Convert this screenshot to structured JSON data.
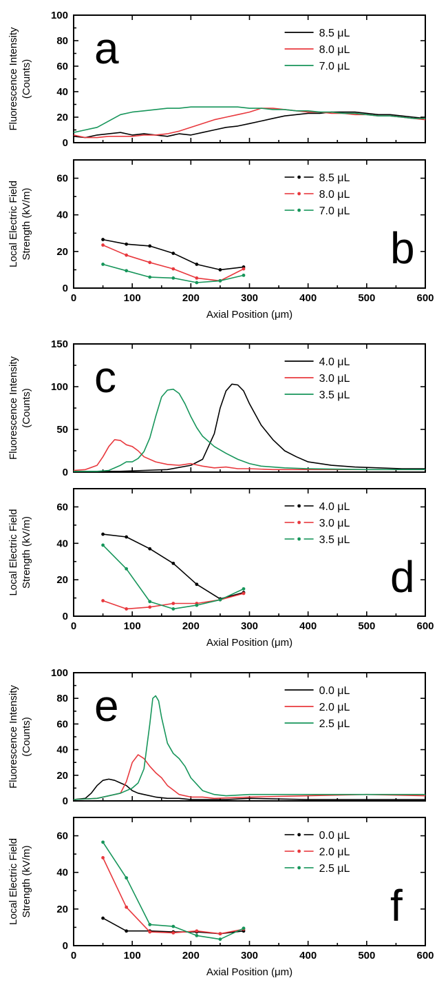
{
  "colors": {
    "black": "#000000",
    "red": "#e8383d",
    "green": "#16955a"
  },
  "chart_data": [
    {
      "type": "line",
      "panel_letter": "a",
      "ylabel": [
        "Fluorescence Intensity",
        "(Counts)"
      ],
      "ylim": [
        0,
        100
      ],
      "yticks": [
        0,
        20,
        40,
        60,
        80,
        100
      ],
      "xlim": [
        0,
        600
      ],
      "xticks": [],
      "series": [
        {
          "name": "8.5 μL",
          "color": "black",
          "markers": false,
          "x": [
            0,
            20,
            40,
            60,
            80,
            100,
            120,
            140,
            160,
            180,
            200,
            220,
            240,
            260,
            280,
            300,
            320,
            340,
            360,
            380,
            400,
            420,
            440,
            460,
            480,
            500,
            520,
            540,
            560,
            580,
            600
          ],
          "y": [
            5,
            4,
            6,
            7,
            8,
            6,
            7,
            6,
            5,
            7,
            6,
            8,
            10,
            12,
            13,
            15,
            17,
            19,
            21,
            22,
            23,
            23,
            24,
            24,
            24,
            23,
            22,
            22,
            21,
            20,
            19
          ]
        },
        {
          "name": "8.0 μL",
          "color": "red",
          "markers": false,
          "x": [
            0,
            20,
            40,
            60,
            80,
            100,
            120,
            140,
            160,
            180,
            200,
            220,
            240,
            260,
            280,
            300,
            320,
            340,
            360,
            380,
            400,
            420,
            440,
            460,
            480,
            500,
            520,
            540,
            560,
            580,
            600
          ],
          "y": [
            6,
            4,
            4,
            5,
            5,
            5,
            6,
            6,
            7,
            9,
            12,
            15,
            18,
            20,
            22,
            24,
            27,
            27,
            26,
            25,
            24,
            24,
            23,
            23,
            22,
            22,
            21,
            21,
            20,
            19,
            18
          ]
        },
        {
          "name": "7.0 μL",
          "color": "green",
          "markers": false,
          "x": [
            0,
            20,
            40,
            60,
            80,
            100,
            120,
            140,
            160,
            180,
            200,
            220,
            240,
            260,
            280,
            300,
            320,
            340,
            360,
            380,
            400,
            420,
            440,
            460,
            480,
            500,
            520,
            540,
            560,
            580,
            600
          ],
          "y": [
            8,
            10,
            12,
            17,
            22,
            24,
            25,
            26,
            27,
            27,
            28,
            28,
            28,
            28,
            28,
            27,
            27,
            26,
            26,
            25,
            25,
            24,
            24,
            23,
            23,
            22,
            21,
            21,
            20,
            19,
            19
          ]
        }
      ]
    },
    {
      "type": "line",
      "panel_letter": "b",
      "ylabel": [
        "Local Electric Field",
        "Strength (kV/m)"
      ],
      "ylim": [
        0,
        70
      ],
      "yticks": [
        0,
        20,
        40,
        60
      ],
      "xlim": [
        0,
        600
      ],
      "xticks": [
        0,
        100,
        200,
        300,
        400,
        500,
        600
      ],
      "xlabel": "Axial Position (μm)",
      "series": [
        {
          "name": "8.5 μL",
          "color": "black",
          "markers": true,
          "x": [
            50,
            90,
            130,
            170,
            210,
            250,
            290
          ],
          "y": [
            26.5,
            24,
            23,
            19,
            13,
            10,
            11.5
          ]
        },
        {
          "name": "8.0 μL",
          "color": "red",
          "markers": true,
          "x": [
            50,
            90,
            130,
            170,
            210,
            250,
            290
          ],
          "y": [
            23.5,
            18,
            14,
            10.5,
            5.5,
            4,
            10.5
          ]
        },
        {
          "name": "7.0 μL",
          "color": "green",
          "markers": true,
          "x": [
            50,
            90,
            130,
            170,
            210,
            250,
            290
          ],
          "y": [
            13,
            9.5,
            6,
            5.5,
            3,
            4,
            7
          ]
        }
      ]
    },
    {
      "type": "line",
      "panel_letter": "c",
      "ylabel": [
        "Fluorescence Intensity",
        "(Counts)"
      ],
      "ylim": [
        0,
        150
      ],
      "yticks": [
        0,
        50,
        100,
        150
      ],
      "xlim": [
        0,
        600
      ],
      "xticks": [],
      "series": [
        {
          "name": "4.0 μL",
          "color": "black",
          "markers": false,
          "x": [
            0,
            40,
            80,
            120,
            160,
            200,
            220,
            240,
            250,
            260,
            270,
            280,
            290,
            300,
            320,
            340,
            360,
            380,
            400,
            440,
            480,
            520,
            560,
            600
          ],
          "y": [
            1,
            1,
            1,
            2,
            3,
            8,
            15,
            45,
            75,
            95,
            103,
            102,
            95,
            80,
            55,
            38,
            25,
            18,
            12,
            8,
            6,
            5,
            4,
            4
          ]
        },
        {
          "name": "3.0 μL",
          "color": "red",
          "markers": false,
          "x": [
            0,
            20,
            40,
            50,
            60,
            70,
            80,
            90,
            100,
            110,
            120,
            140,
            160,
            180,
            200,
            220,
            240,
            260,
            280,
            300,
            340,
            400,
            500,
            600
          ],
          "y": [
            2,
            3,
            8,
            18,
            30,
            38,
            37,
            32,
            30,
            25,
            18,
            12,
            9,
            8,
            10,
            7,
            5,
            6,
            4,
            4,
            3,
            3,
            3,
            3
          ]
        },
        {
          "name": "3.5 μL",
          "color": "green",
          "markers": false,
          "x": [
            0,
            40,
            60,
            80,
            90,
            100,
            110,
            120,
            130,
            140,
            150,
            160,
            170,
            180,
            190,
            200,
            210,
            220,
            240,
            260,
            280,
            300,
            320,
            360,
            400,
            500,
            600
          ],
          "y": [
            1,
            1,
            2,
            8,
            12,
            12,
            16,
            24,
            40,
            65,
            88,
            96,
            97,
            92,
            80,
            65,
            52,
            42,
            30,
            22,
            15,
            10,
            7,
            5,
            4,
            3,
            3
          ]
        }
      ]
    },
    {
      "type": "line",
      "panel_letter": "d",
      "ylabel": [
        "Local Electric Field",
        "Strength (kV/m)"
      ],
      "ylim": [
        0,
        70
      ],
      "yticks": [
        0,
        20,
        40,
        60
      ],
      "xlim": [
        0,
        600
      ],
      "xticks": [
        0,
        100,
        200,
        300,
        400,
        500,
        600
      ],
      "xlabel": "Axial Position (μm)",
      "series": [
        {
          "name": "4.0 μL",
          "color": "black",
          "markers": true,
          "x": [
            50,
            90,
            130,
            170,
            210,
            250,
            290
          ],
          "y": [
            45,
            43.5,
            37,
            29,
            17.5,
            9.5,
            13
          ]
        },
        {
          "name": "3.0 μL",
          "color": "red",
          "markers": true,
          "x": [
            50,
            90,
            130,
            170,
            210,
            250,
            290
          ],
          "y": [
            8.5,
            4,
            5,
            7,
            7,
            9,
            12.5
          ]
        },
        {
          "name": "3.5 μL",
          "color": "green",
          "markers": true,
          "x": [
            50,
            90,
            130,
            170,
            210,
            250,
            290
          ],
          "y": [
            39,
            26,
            8,
            4,
            6,
            9,
            15
          ]
        }
      ]
    },
    {
      "type": "line",
      "panel_letter": "e",
      "ylabel": [
        "Fluorescence Intensity",
        "(Counts)"
      ],
      "ylim": [
        0,
        100
      ],
      "yticks": [
        0,
        20,
        40,
        60,
        80,
        100
      ],
      "xlim": [
        0,
        600
      ],
      "xticks": [],
      "series": [
        {
          "name": "0.0 μL",
          "color": "black",
          "markers": false,
          "x": [
            0,
            20,
            30,
            40,
            50,
            60,
            70,
            80,
            90,
            100,
            110,
            120,
            140,
            160,
            180,
            200,
            260,
            300,
            400,
            500,
            600
          ],
          "y": [
            1,
            2,
            6,
            12,
            16,
            17,
            16,
            14,
            12,
            8,
            6,
            5,
            3,
            2,
            2,
            1,
            1,
            2,
            1,
            1,
            1
          ]
        },
        {
          "name": "2.0 μL",
          "color": "red",
          "markers": false,
          "x": [
            0,
            40,
            60,
            80,
            90,
            100,
            110,
            120,
            130,
            140,
            150,
            160,
            180,
            200,
            220,
            240,
            300,
            400,
            500,
            600
          ],
          "y": [
            1,
            2,
            4,
            6,
            15,
            30,
            36,
            33,
            27,
            22,
            18,
            12,
            5,
            3,
            3,
            2,
            3,
            4,
            5,
            4
          ]
        },
        {
          "name": "2.5 μL",
          "color": "green",
          "markers": false,
          "x": [
            0,
            40,
            80,
            100,
            110,
            120,
            130,
            135,
            140,
            145,
            150,
            160,
            170,
            180,
            190,
            200,
            220,
            240,
            260,
            300,
            400,
            500,
            600
          ],
          "y": [
            1,
            2,
            6,
            10,
            14,
            25,
            60,
            80,
            82,
            78,
            65,
            45,
            37,
            33,
            27,
            18,
            8,
            5,
            4,
            5,
            5,
            5,
            5
          ]
        }
      ]
    },
    {
      "type": "line",
      "panel_letter": "f",
      "ylabel": [
        "Local Electric Field",
        "Strength (kV/m)"
      ],
      "ylim": [
        0,
        70
      ],
      "yticks": [
        0,
        20,
        40,
        60
      ],
      "xlim": [
        0,
        600
      ],
      "xticks": [
        0,
        100,
        200,
        300,
        400,
        500,
        600
      ],
      "xlabel": "Axial Position (μm)",
      "series": [
        {
          "name": "0.0 μL",
          "color": "black",
          "markers": true,
          "x": [
            50,
            90,
            130,
            170,
            210,
            250,
            290
          ],
          "y": [
            15,
            8,
            8,
            7.5,
            7.5,
            6.5,
            8
          ]
        },
        {
          "name": "2.0 μL",
          "color": "red",
          "markers": true,
          "x": [
            50,
            90,
            130,
            170,
            210,
            250,
            290
          ],
          "y": [
            48,
            21,
            7.5,
            7,
            8,
            6.5,
            9
          ]
        },
        {
          "name": "2.5 μL",
          "color": "green",
          "markers": true,
          "x": [
            50,
            90,
            130,
            170,
            210,
            250,
            290
          ],
          "y": [
            56.5,
            37,
            11.5,
            10.5,
            5.5,
            3.5,
            9.5
          ]
        }
      ]
    }
  ]
}
